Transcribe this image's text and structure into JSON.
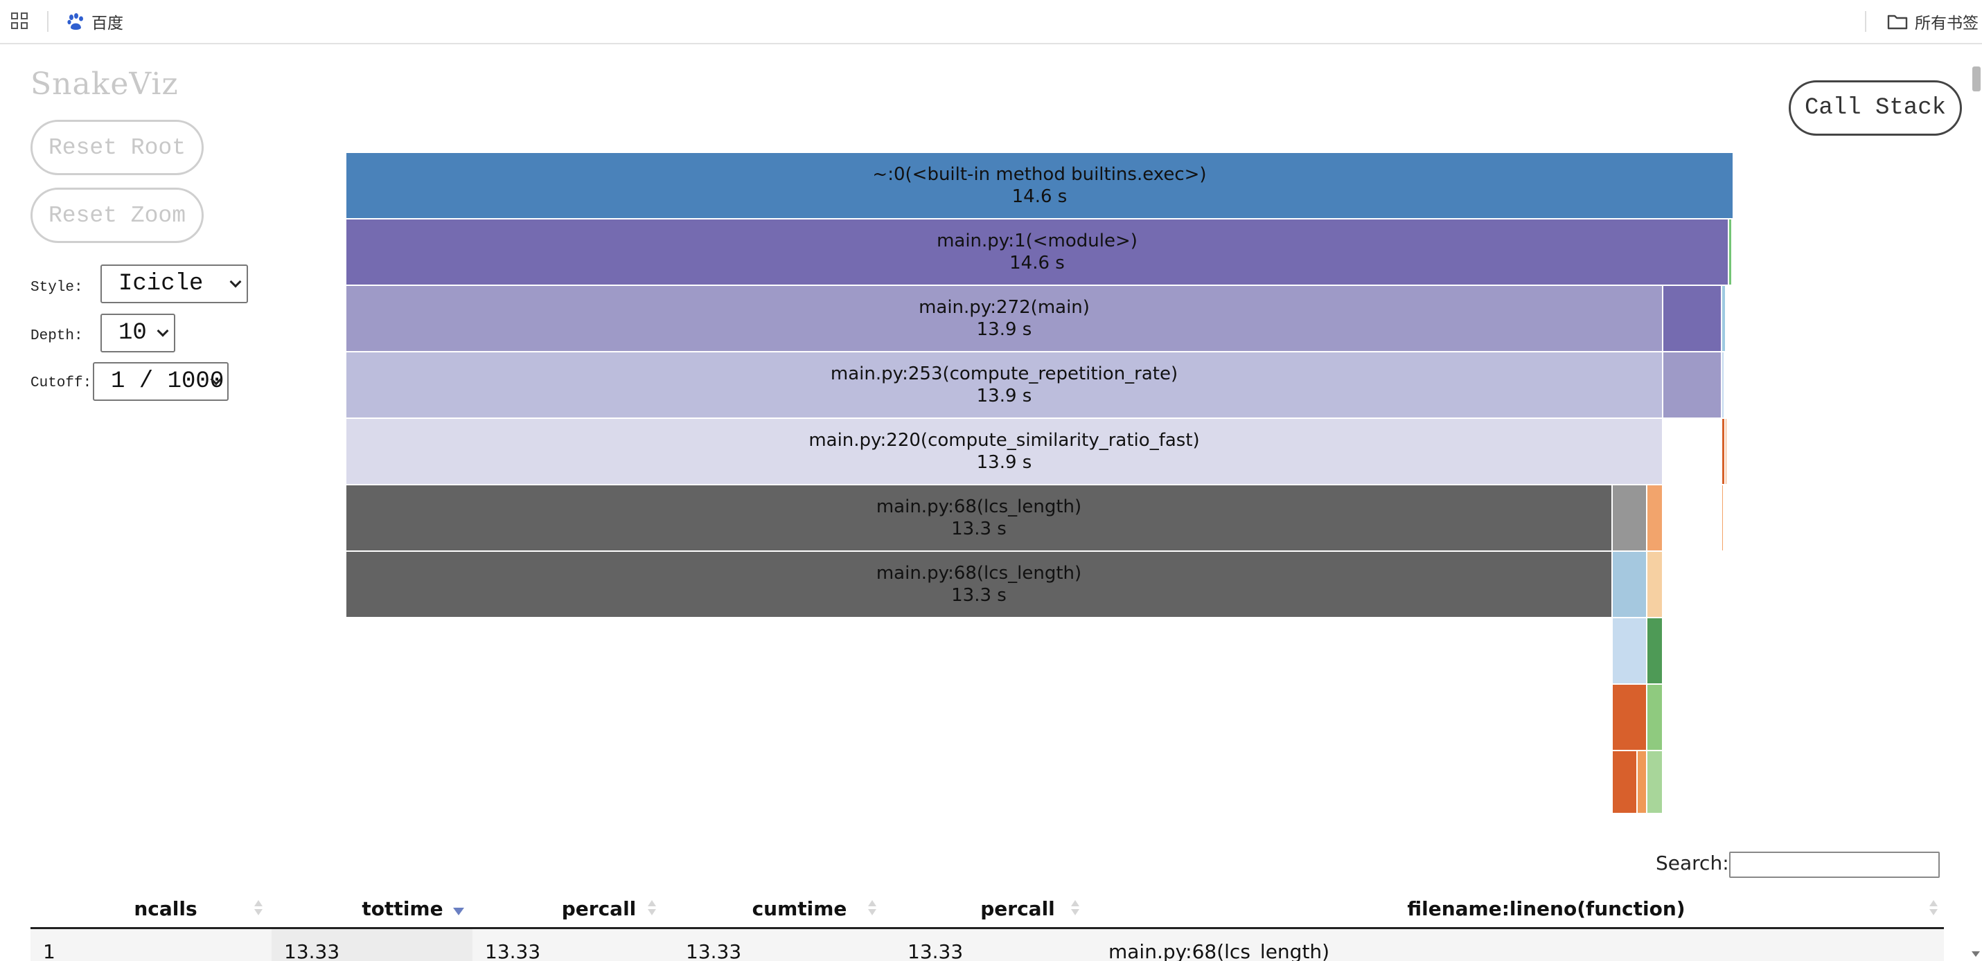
{
  "bookmarks": {
    "items": [
      {
        "label": "百度",
        "icon": "baidu-paw-icon"
      },
      {
        "label": "所有书签",
        "icon": "folder-icon"
      }
    ]
  },
  "app": {
    "logo": "SnakeViz",
    "reset_root": "Reset Root",
    "reset_zoom": "Reset Zoom",
    "call_stack": "Call Stack",
    "style_label": "Style:",
    "style_value": "Icicle",
    "depth_label": "Depth:",
    "depth_value": "10",
    "cutoff_label": "Cutoff:",
    "cutoff_value": "1 / 1000"
  },
  "icicle": {
    "nodes": [
      {
        "label": "~:0(<built-in method builtins.exec>)",
        "time": "14.6 s",
        "color": "#4a82ba"
      },
      {
        "label": "main.py:1(<module>)",
        "time": "14.6 s",
        "color": "#756bb0"
      },
      {
        "label": "main.py:272(main)",
        "time": "13.9 s",
        "color": "#9e9ac7"
      },
      {
        "label": "main.py:253(compute_repetition_rate)",
        "time": "13.9 s",
        "color": "#bcbddc"
      },
      {
        "label": "main.py:220(compute_similarity_ratio_fast)",
        "time": "13.9 s",
        "color": "#dadaeb"
      },
      {
        "label": "main.py:68(lcs_length)",
        "time": "13.3 s",
        "color": "#636363"
      },
      {
        "label": "main.py:68(lcs_length)",
        "time": "13.3 s",
        "color": "#636363"
      }
    ]
  },
  "table": {
    "search_label": "Search:",
    "headers": [
      "ncalls",
      "tottime",
      "percall",
      "cumtime",
      "percall",
      "filename:lineno(function)"
    ],
    "sorted_column": "tottime",
    "rows": [
      [
        "1",
        "13.33",
        "13.33",
        "13.33",
        "13.33",
        "main.py:68(lcs_length)"
      ]
    ]
  }
}
